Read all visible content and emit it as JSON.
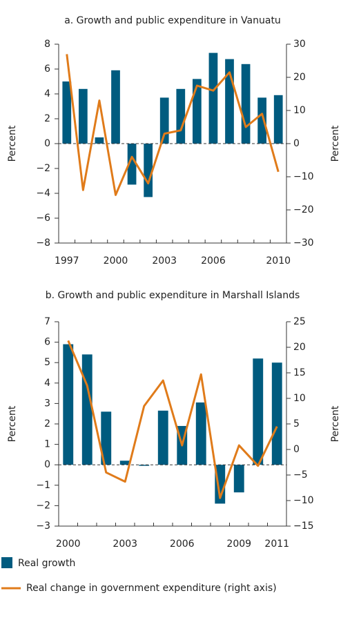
{
  "chart_data": [
    {
      "type": "bar-line",
      "title": "a. Growth and public expenditure in Vanuatu",
      "ylabel": "Percent",
      "y2label": "Percent",
      "categories": [
        "1997",
        null,
        null,
        "2000",
        null,
        null,
        "2003",
        null,
        null,
        "2006",
        null,
        null,
        null,
        "2010"
      ],
      "series": [
        {
          "name": "Real growth",
          "color": "#005b7f",
          "kind": "bar",
          "values": [
            5.0,
            4.4,
            0.5,
            5.9,
            -3.3,
            -4.3,
            3.7,
            4.4,
            5.2,
            7.3,
            6.8,
            6.4,
            3.7,
            3.9
          ]
        },
        {
          "name": "Real change in government expenditure (right axis)",
          "color": "#e07b1a",
          "kind": "line",
          "axis": "y2",
          "values": [
            27,
            -14,
            13,
            -15.5,
            -4,
            -12,
            3,
            4,
            17.5,
            16,
            21.5,
            5,
            9,
            -8.5
          ]
        }
      ],
      "ylim": [
        -8,
        8
      ],
      "yticks": [
        {
          "value": -8,
          "label": "−8"
        },
        {
          "value": -6,
          "label": "−6"
        },
        {
          "value": -4,
          "label": "−4"
        },
        {
          "value": -2,
          "label": "−2"
        },
        0,
        2,
        4,
        6,
        8
      ],
      "y2lim": [
        -30,
        30
      ],
      "y2ticks": [
        {
          "value": -30,
          "label": "−30"
        },
        {
          "value": -20,
          "label": "−20"
        },
        {
          "value": -10,
          "label": "−10"
        },
        0,
        10,
        20,
        30
      ]
    },
    {
      "type": "bar-line",
      "title": "b. Growth and public expenditure in Marshall Islands",
      "ylabel": "Percent",
      "y2label": "Percent",
      "categories": [
        "2000",
        null,
        null,
        "2003",
        null,
        null,
        "2006",
        null,
        null,
        "2009",
        null,
        "2011"
      ],
      "series": [
        {
          "name": "Real growth",
          "color": "#005b7f",
          "kind": "bar",
          "values": [
            5.9,
            5.4,
            2.6,
            0.2,
            -0.05,
            2.65,
            1.9,
            3.05,
            -1.9,
            -1.35,
            5.2,
            5.0
          ]
        },
        {
          "name": "Real change in government expenditure (right axis)",
          "color": "#e07b1a",
          "kind": "line",
          "axis": "y2",
          "values": [
            21.3,
            12.5,
            -4.5,
            -6.3,
            8.5,
            13.5,
            0.8,
            14.7,
            -9.5,
            0.8,
            -3.2,
            4.5
          ]
        }
      ],
      "ylim": [
        -3,
        7
      ],
      "yticks": [
        {
          "value": -3,
          "label": "−3"
        },
        {
          "value": -2,
          "label": "−2"
        },
        {
          "value": -1,
          "label": "−1"
        },
        0,
        1,
        2,
        3,
        4,
        5,
        6,
        7
      ],
      "y2lim": [
        -15,
        25
      ],
      "y2ticks": [
        {
          "value": -15,
          "label": "−15"
        },
        {
          "value": -10,
          "label": "−10"
        },
        {
          "value": -5,
          "label": "−5"
        },
        0,
        5,
        10,
        15,
        20,
        25
      ]
    }
  ]
}
